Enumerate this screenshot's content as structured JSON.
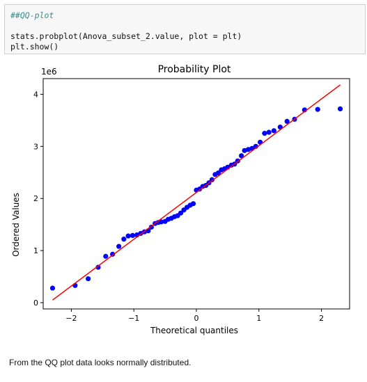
{
  "code_cell": {
    "comment": "##QQ-plot",
    "line1": "stats.probplot(Anova_subset_2.value, plot = plt)",
    "line2": "plt.show()"
  },
  "chart_data": {
    "type": "scatter",
    "title": "Probability Plot",
    "xlabel": "Theoretical quantiles",
    "ylabel": "Ordered Values",
    "y_offset_label": "1e6",
    "xlim": [
      -2.45,
      2.45
    ],
    "ylim": [
      -0.12,
      4.3
    ],
    "x_ticks": [
      -2,
      -1,
      0,
      1,
      2
    ],
    "x_tick_labels": [
      "−2",
      "−1",
      "0",
      "1",
      "2"
    ],
    "y_ticks": [
      0,
      1,
      2,
      3,
      4
    ],
    "y_tick_labels": [
      "0",
      "1",
      "2",
      "3",
      "4"
    ],
    "grid": false,
    "point_color": "#0000ff",
    "line_color": "#ff0000",
    "fit_line": {
      "x": [
        -2.3,
        2.3
      ],
      "y": [
        0.05,
        4.18
      ]
    },
    "points": [
      [
        -2.3,
        0.28
      ],
      [
        -1.94,
        0.33
      ],
      [
        -1.73,
        0.46
      ],
      [
        -1.57,
        0.68
      ],
      [
        -1.45,
        0.89
      ],
      [
        -1.34,
        0.93
      ],
      [
        -1.24,
        1.08
      ],
      [
        -1.16,
        1.22
      ],
      [
        -1.09,
        1.28
      ],
      [
        -1.02,
        1.29
      ],
      [
        -0.95,
        1.3
      ],
      [
        -0.89,
        1.33
      ],
      [
        -0.83,
        1.36
      ],
      [
        -0.77,
        1.38
      ],
      [
        -0.72,
        1.45
      ],
      [
        -0.66,
        1.52
      ],
      [
        -0.61,
        1.54
      ],
      [
        -0.56,
        1.55
      ],
      [
        -0.5,
        1.56
      ],
      [
        -0.45,
        1.6
      ],
      [
        -0.4,
        1.62
      ],
      [
        -0.35,
        1.65
      ],
      [
        -0.3,
        1.67
      ],
      [
        -0.25,
        1.72
      ],
      [
        -0.2,
        1.78
      ],
      [
        -0.15,
        1.83
      ],
      [
        -0.1,
        1.87
      ],
      [
        -0.05,
        1.9
      ],
      [
        0.0,
        2.16
      ],
      [
        0.05,
        2.18
      ],
      [
        0.1,
        2.23
      ],
      [
        0.15,
        2.25
      ],
      [
        0.2,
        2.3
      ],
      [
        0.25,
        2.36
      ],
      [
        0.3,
        2.46
      ],
      [
        0.35,
        2.49
      ],
      [
        0.4,
        2.55
      ],
      [
        0.45,
        2.57
      ],
      [
        0.5,
        2.6
      ],
      [
        0.56,
        2.64
      ],
      [
        0.61,
        2.66
      ],
      [
        0.66,
        2.72
      ],
      [
        0.72,
        2.82
      ],
      [
        0.77,
        2.92
      ],
      [
        0.83,
        2.94
      ],
      [
        0.89,
        2.96
      ],
      [
        0.95,
        3.0
      ],
      [
        1.02,
        3.08
      ],
      [
        1.09,
        3.25
      ],
      [
        1.16,
        3.27
      ],
      [
        1.24,
        3.3
      ],
      [
        1.34,
        3.37
      ],
      [
        1.45,
        3.48
      ],
      [
        1.57,
        3.52
      ],
      [
        1.73,
        3.7
      ],
      [
        1.94,
        3.71
      ],
      [
        2.3,
        3.72
      ]
    ]
  },
  "note": "From the QQ plot data looks normally distributed."
}
